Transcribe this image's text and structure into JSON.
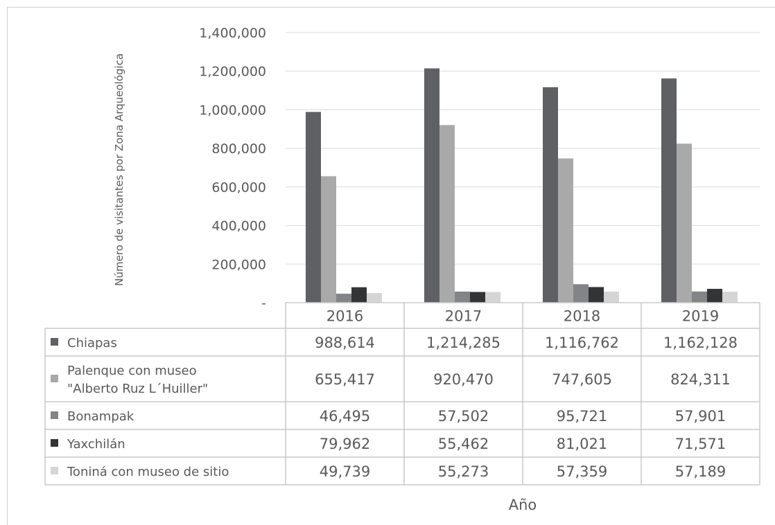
{
  "chart_data": {
    "type": "bar",
    "title": "",
    "xlabel": "Año",
    "ylabel": "Número de visitantes por Zona Arqueológica",
    "categories": [
      "2016",
      "2017",
      "2018",
      "2019"
    ],
    "ylim": [
      0,
      1400000
    ],
    "yticks": [
      0,
      200000,
      400000,
      600000,
      800000,
      1000000,
      1200000,
      1400000
    ],
    "ytick_labels": [
      "-",
      "200,000",
      "400,000",
      "600,000",
      "800,000",
      "1,000,000",
      "1,200,000",
      "1,400,000"
    ],
    "grid": true,
    "legend": "data-table-below",
    "series": [
      {
        "name": "Chiapas",
        "color": "#5f6063",
        "values": [
          988614,
          1214285,
          1116762,
          1162128
        ],
        "labels": [
          "988,614",
          "1,214,285",
          "1,116,762",
          "1,162,128"
        ]
      },
      {
        "name": "Palenque con museo \"Alberto Ruz L´Huiller\"",
        "name_lines": [
          "Palenque con museo",
          "\"Alberto Ruz L´Huiller\""
        ],
        "color": "#a9a9a9",
        "values": [
          655417,
          920470,
          747605,
          824311
        ],
        "labels": [
          "655,417",
          "920,470",
          "747,605",
          "824,311"
        ]
      },
      {
        "name": "Bonampak",
        "color": "#838488",
        "values": [
          46495,
          57502,
          95721,
          57901
        ],
        "labels": [
          "46,495",
          "57,502",
          "95,721",
          "57,901"
        ]
      },
      {
        "name": "Yaxchilán",
        "color": "#323436",
        "values": [
          79962,
          55462,
          81021,
          71571
        ],
        "labels": [
          "79,962",
          "55,462",
          "81,021",
          "71,571"
        ]
      },
      {
        "name": "Toniná con museo de sitio",
        "color": "#d5d5d5",
        "values": [
          49739,
          55273,
          57359,
          57189
        ],
        "labels": [
          "49,739",
          "55,273",
          "57,359",
          "57,189"
        ]
      }
    ]
  }
}
